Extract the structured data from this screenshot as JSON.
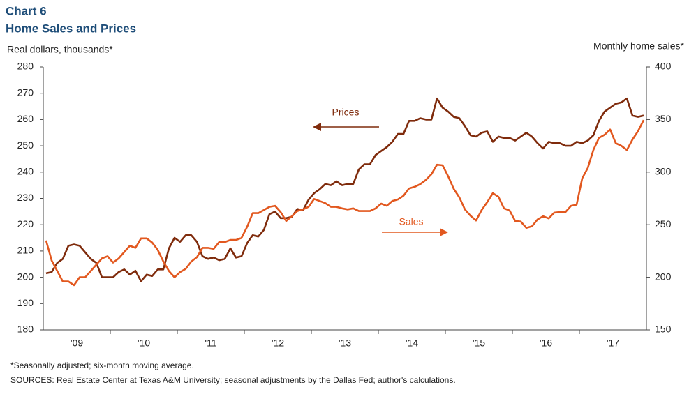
{
  "chart_data": {
    "type": "line",
    "title": "Chart 6",
    "subtitle": "Home Sales and Prices",
    "y_label": "Real dollars, thousands*",
    "y2_label": "Monthly home sales*",
    "notes": [
      "*Seasonally adjusted; six-month moving average.",
      "SOURCES: Real Estate Center at Texas A&M University; seasonal adjustments by the Dallas Fed; author's calculations."
    ],
    "annotations": [
      "Prices",
      "Sales"
    ],
    "categories": [
      null,
      null,
      null,
      null,
      null,
      null,
      "'09",
      null,
      null,
      null,
      null,
      null,
      null,
      null,
      null,
      null,
      null,
      null,
      "'10",
      null,
      null,
      null,
      null,
      null,
      null,
      null,
      null,
      null,
      null,
      null,
      "'11",
      null,
      null,
      null,
      null,
      null,
      null,
      null,
      null,
      null,
      null,
      null,
      "'12",
      null,
      null,
      null,
      null,
      null,
      null,
      null,
      null,
      null,
      null,
      null,
      "'13",
      null,
      null,
      null,
      null,
      null,
      null,
      null,
      null,
      null,
      null,
      null,
      "'14",
      null,
      null,
      null,
      null,
      null,
      null,
      null,
      null,
      null,
      null,
      null,
      "'15",
      null,
      null,
      null,
      null,
      null,
      null,
      null,
      null,
      null,
      null,
      null,
      "'16",
      null,
      null,
      null,
      null,
      null,
      null,
      null,
      null,
      null,
      null,
      null,
      "'17",
      null,
      null,
      null,
      null,
      null
    ],
    "ylim": [
      180,
      280
    ],
    "yticks": [
      180,
      190,
      200,
      210,
      220,
      230,
      240,
      250,
      260,
      270,
      280
    ],
    "y2lim": [
      150,
      400
    ],
    "y2ticks": [
      150,
      200,
      250,
      300,
      350,
      400
    ],
    "grid": false,
    "series": [
      {
        "name": "Prices",
        "color": "#7f2b0c",
        "axis": "y",
        "values": [
          201.5,
          202,
          205.5,
          207,
          212,
          212.5,
          212,
          209.5,
          207,
          205.5,
          200,
          200,
          200,
          202,
          203,
          201,
          202.5,
          198.5,
          201,
          200.5,
          203,
          203,
          211,
          215,
          213.5,
          216,
          216,
          213.5,
          208,
          207,
          207.5,
          206.5,
          207,
          211,
          207.5,
          208,
          213,
          216,
          215.5,
          218,
          224,
          225,
          222.5,
          222.5,
          223,
          226,
          225.5,
          229.5,
          232,
          233.5,
          235.5,
          235,
          236.5,
          235,
          235.5,
          235.5,
          241,
          243,
          243,
          246.5,
          248,
          249.5,
          251.5,
          254.5,
          254.5,
          259.5,
          259.5,
          260.5,
          260,
          260,
          268,
          264.5,
          263,
          261,
          260.5,
          257.5,
          254,
          253.5,
          255,
          255.5,
          251.5,
          253.5,
          253,
          253,
          252,
          253.5,
          255,
          253.5,
          251,
          249,
          251.5,
          251,
          251,
          250,
          250,
          251.5,
          251,
          252,
          254,
          259.5,
          263,
          264.5,
          266,
          266.5,
          268,
          261.5,
          261,
          261.5
        ]
      },
      {
        "name": "Sales",
        "color": "#e2581f",
        "axis": "y2",
        "values": [
          235,
          216,
          206,
          196,
          196,
          192.5,
          200,
          200,
          206,
          212,
          218,
          220,
          214,
          218,
          224,
          230,
          228,
          237,
          237,
          233,
          226,
          215,
          206,
          200,
          205,
          208,
          215,
          219,
          228,
          228,
          227,
          233.5,
          233.5,
          235.5,
          235.5,
          237.5,
          248,
          261,
          261,
          264,
          267,
          268,
          262,
          253.5,
          258,
          263,
          264.5,
          267,
          274.5,
          272.5,
          270.5,
          267,
          267,
          265.5,
          264.5,
          265.5,
          263,
          263,
          263,
          265.5,
          270,
          268,
          272.5,
          274,
          277.5,
          284.5,
          286,
          288.5,
          292.5,
          298,
          307,
          306.5,
          296,
          284,
          276,
          264.5,
          258.5,
          254,
          264,
          271.5,
          280,
          276.5,
          265.5,
          263.5,
          253.5,
          253,
          247,
          248.5,
          255,
          258,
          256,
          261.5,
          262,
          262,
          268,
          269,
          294,
          304,
          321,
          332.5,
          335.5,
          340.5,
          327.5,
          325,
          321,
          331,
          339,
          349.5
        ]
      }
    ]
  }
}
